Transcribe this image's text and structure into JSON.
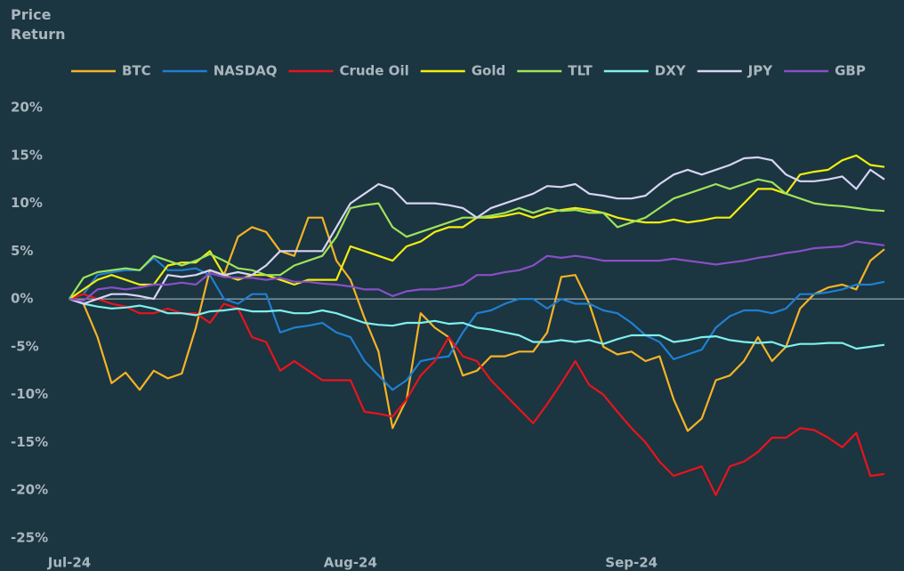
{
  "chart_data": {
    "type": "line",
    "title": "Price Return",
    "categories": [
      "Jul-24",
      null,
      null,
      null,
      null,
      null,
      null,
      null,
      null,
      null,
      null,
      null,
      null,
      null,
      null,
      null,
      null,
      null,
      null,
      null,
      "Aug-24",
      null,
      null,
      null,
      null,
      null,
      null,
      null,
      null,
      null,
      null,
      null,
      null,
      null,
      null,
      null,
      null,
      null,
      null,
      null,
      "Sep-24",
      null,
      null,
      null,
      null,
      null,
      null,
      null,
      null,
      null,
      null,
      null,
      null,
      null,
      null,
      null,
      null,
      null,
      null
    ],
    "ylim": [
      -25,
      20
    ],
    "yticks": [
      {
        "value": -25,
        "label": "-25%"
      },
      {
        "value": -20,
        "label": "-20%"
      },
      {
        "value": -15,
        "label": "-15%"
      },
      {
        "value": -10,
        "label": "-10%"
      },
      {
        "value": -5,
        "label": "-5%"
      },
      {
        "value": 0,
        "label": "0%"
      },
      {
        "value": 5,
        "label": "5%"
      },
      {
        "value": 10,
        "label": "10%"
      },
      {
        "value": 15,
        "label": "15%"
      },
      {
        "value": 20,
        "label": "20%"
      }
    ],
    "grid": false,
    "zero_line": true,
    "legend": "top",
    "series": [
      {
        "name": "BTC",
        "color": "#f5b325",
        "values": [
          0,
          -0.5,
          -4,
          -8.8,
          -7.7,
          -9.5,
          -7.5,
          -8.3,
          -7.8,
          -3,
          3,
          2.5,
          6.5,
          7.5,
          7,
          5,
          4.5,
          8.5,
          8.5,
          4,
          2,
          -2,
          -5.5,
          -13.5,
          -10.5,
          -1.5,
          -3,
          -4,
          -8,
          -7.5,
          -6,
          -6,
          -5.5,
          -5.5,
          -3.5,
          2.3,
          2.5,
          -0.5,
          -5,
          -5.8,
          -5.5,
          -6.5,
          -6,
          -10.5,
          -13.8,
          -12.5,
          -8.5,
          -8,
          -6.5,
          -4,
          -6.5,
          -5,
          -1,
          0.5,
          1.2,
          1.5,
          1,
          4,
          5.2
        ]
      },
      {
        "name": "NASDAQ",
        "color": "#1f7fd1",
        "values": [
          0,
          0.5,
          2.5,
          2.8,
          3,
          3,
          4.3,
          3,
          3,
          3.2,
          2.5,
          0,
          -0.5,
          0.5,
          0.5,
          -3.5,
          -3,
          -2.8,
          -2.5,
          -3.5,
          -4,
          -6.5,
          -8,
          -9.5,
          -8.5,
          -6.5,
          -6.2,
          -6,
          -3.5,
          -1.5,
          -1.2,
          -0.5,
          0,
          0,
          -1,
          0,
          -0.5,
          -0.5,
          -1.2,
          -1.5,
          -2.5,
          -3.8,
          -4.5,
          -6.3,
          -5.8,
          -5.3,
          -3,
          -1.8,
          -1.2,
          -1.2,
          -1.5,
          -1,
          0.5,
          0.5,
          0.7,
          1,
          1.5,
          1.5,
          1.8
        ]
      },
      {
        "name": "Crude Oil",
        "color": "#e8141c",
        "values": [
          0,
          0.5,
          0,
          -0.5,
          -0.8,
          -1.5,
          -1.5,
          -1,
          -1.5,
          -1.5,
          -2.5,
          -0.5,
          -1,
          -4,
          -4.5,
          -7.5,
          -6.5,
          -7.5,
          -8.5,
          -8.5,
          -8.5,
          -11.8,
          -12,
          -12.3,
          -10.5,
          -8,
          -6.5,
          -4,
          -6,
          -6.5,
          -8.5,
          -10,
          -11.5,
          -13,
          -11,
          -8.8,
          -6.5,
          -9,
          -10,
          -11.8,
          -13.5,
          -15,
          -17,
          -18.5,
          -18,
          -17.5,
          -20.5,
          -17.5,
          -17,
          -16,
          -14.5,
          -14.5,
          -13.5,
          -13.7,
          -14.5,
          -15.5,
          -14,
          -18.5,
          -18.3
        ]
      },
      {
        "name": "Gold",
        "color": "#f2ee0e",
        "values": [
          0,
          1,
          2,
          2.5,
          2,
          1.5,
          1.5,
          3.5,
          3.8,
          3.8,
          5,
          2.5,
          2,
          2.5,
          2.5,
          2,
          1.5,
          2,
          2,
          2,
          5.5,
          5,
          4.5,
          4,
          5.5,
          6,
          7,
          7.5,
          7.5,
          8.5,
          8.5,
          8.7,
          9,
          8.5,
          9,
          9.3,
          9.5,
          9.3,
          9,
          8.5,
          8.2,
          8,
          8,
          8.3,
          8,
          8.2,
          8.5,
          8.5,
          10,
          11.5,
          11.5,
          11,
          13,
          13.3,
          13.5,
          14.5,
          15,
          14,
          13.8
        ]
      },
      {
        "name": "TLT",
        "color": "#9ee35a",
        "values": [
          0,
          2.2,
          2.8,
          3,
          3.2,
          3,
          4.5,
          4,
          3.5,
          4,
          4.7,
          4,
          3.2,
          3,
          2.5,
          2.5,
          3.5,
          4,
          4.5,
          6.5,
          9.5,
          9.8,
          10,
          7.5,
          6.5,
          7,
          7.5,
          8,
          8.5,
          8.5,
          8.7,
          9,
          9.5,
          9,
          9.5,
          9.2,
          9.3,
          9,
          9,
          7.5,
          8,
          8.5,
          9.5,
          10.5,
          11,
          11.5,
          12,
          11.5,
          12,
          12.5,
          12.2,
          11,
          10.5,
          10,
          9.8,
          9.7,
          9.5,
          9.3,
          9.2
        ]
      },
      {
        "name": "DXY",
        "color": "#7ff0ec",
        "values": [
          0,
          -0.5,
          -0.8,
          -1,
          -0.9,
          -0.7,
          -1,
          -1.5,
          -1.5,
          -1.7,
          -1.3,
          -1.2,
          -1,
          -1.3,
          -1.3,
          -1.2,
          -1.5,
          -1.5,
          -1.2,
          -1.5,
          -2,
          -2.5,
          -2.7,
          -2.8,
          -2.5,
          -2.5,
          -2.3,
          -2.6,
          -2.5,
          -3,
          -3.2,
          -3.5,
          -3.8,
          -4.5,
          -4.5,
          -4.3,
          -4.5,
          -4.3,
          -4.7,
          -4.2,
          -3.8,
          -3.8,
          -3.8,
          -4.5,
          -4.3,
          -4,
          -3.9,
          -4.3,
          -4.5,
          -4.6,
          -4.5,
          -5,
          -4.7,
          -4.7,
          -4.6,
          -4.6,
          -5.2,
          -5,
          -4.8
        ]
      },
      {
        "name": "JPY",
        "color": "#d8d4f5",
        "values": [
          0,
          -0.5,
          0,
          0.5,
          0.5,
          0.3,
          0,
          2.5,
          2.3,
          2.5,
          3,
          2.5,
          2.8,
          2.5,
          3.5,
          5,
          5,
          5,
          5,
          7.5,
          10,
          11,
          12,
          11.5,
          10,
          10,
          10,
          9.8,
          9.5,
          8.5,
          9.5,
          10,
          10.5,
          11,
          11.8,
          11.7,
          12,
          11,
          10.8,
          10.5,
          10.5,
          10.8,
          12,
          13,
          13.5,
          13,
          13.5,
          14,
          14.7,
          14.8,
          14.5,
          13,
          12.3,
          12.3,
          12.5,
          12.8,
          11.5,
          13.5,
          12.5
        ]
      },
      {
        "name": "GBP",
        "color": "#8a4fc4",
        "values": [
          0,
          -0.2,
          1,
          1.2,
          1,
          1.2,
          1.5,
          1.5,
          1.7,
          1.5,
          2.7,
          2.3,
          2.2,
          2.2,
          2,
          2.2,
          1.8,
          1.8,
          1.6,
          1.5,
          1.3,
          1,
          1,
          0.3,
          0.8,
          1,
          1,
          1.2,
          1.5,
          2.5,
          2.5,
          2.8,
          3,
          3.5,
          4.5,
          4.3,
          4.5,
          4.3,
          4,
          4,
          4,
          4,
          4,
          4.2,
          4,
          3.8,
          3.6,
          3.8,
          4,
          4.3,
          4.5,
          4.8,
          5,
          5.3,
          5.4,
          5.5,
          6,
          5.8,
          5.6
        ]
      }
    ]
  }
}
